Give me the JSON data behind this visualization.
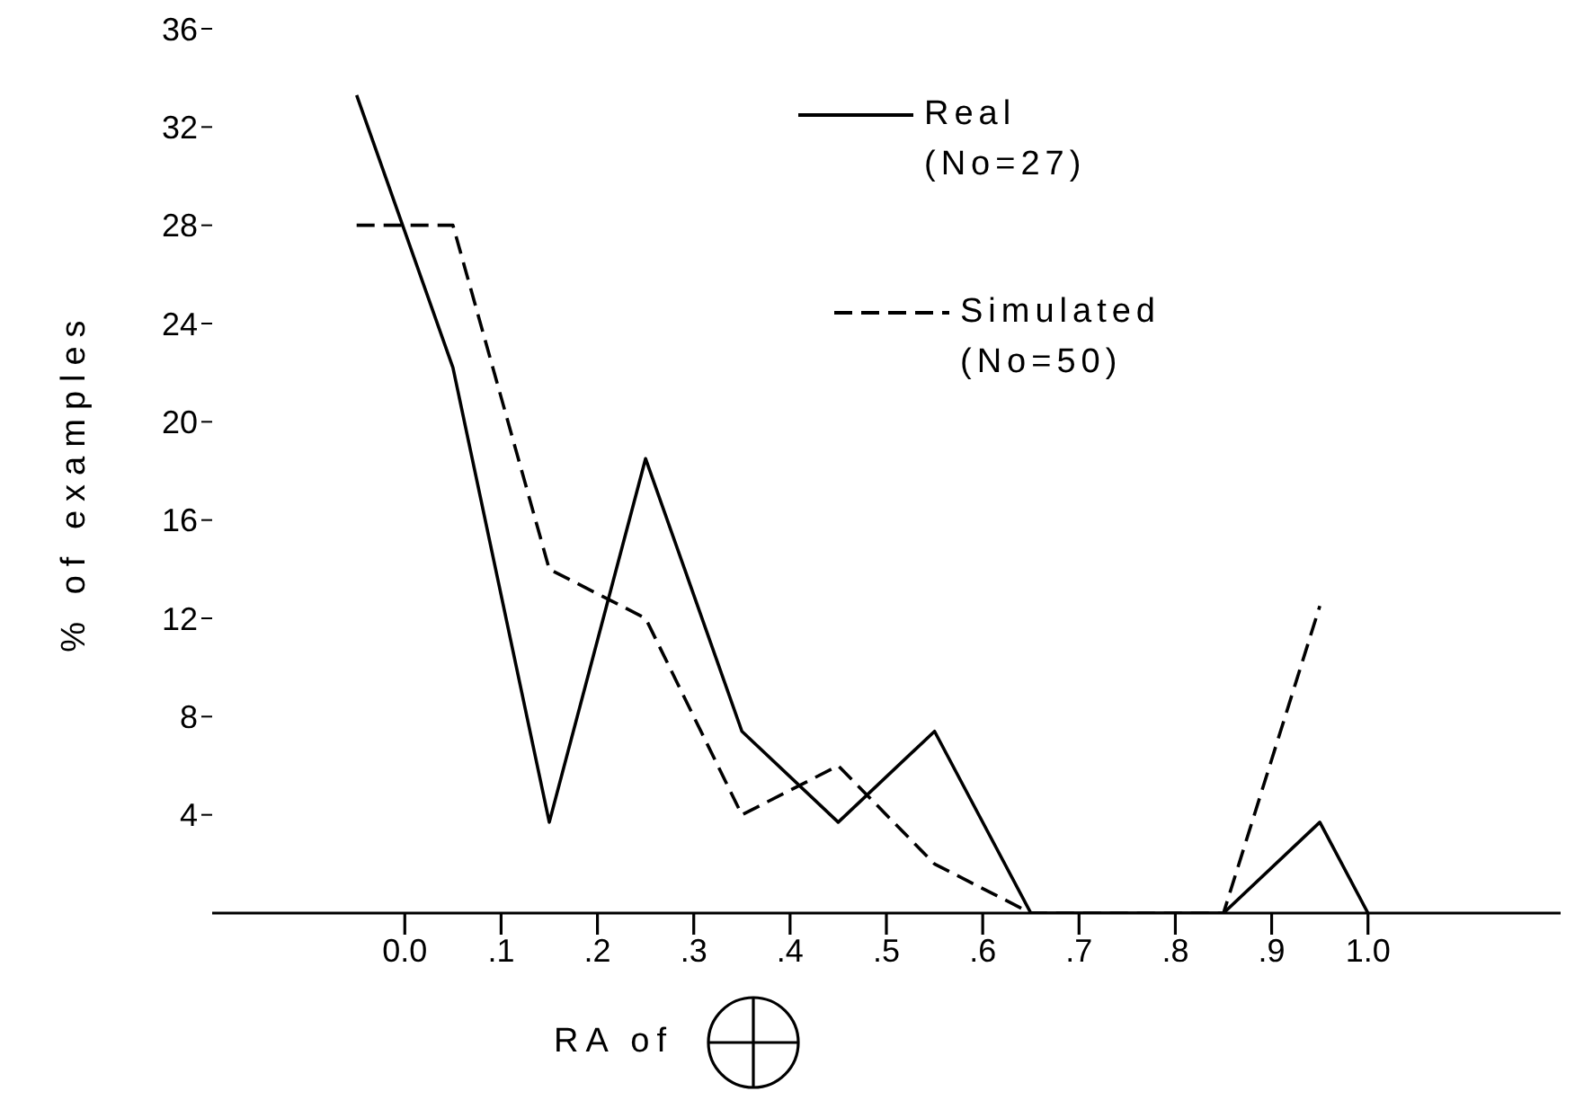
{
  "chart_data": {
    "type": "line",
    "xlabel": "RA of",
    "ylabel": "% of examples",
    "xlim": [
      -0.2,
      1.2
    ],
    "ylim": [
      0,
      36
    ],
    "xticks": [
      {
        "value": 0,
        "label": "0.0"
      },
      {
        "value": 0.1,
        "label": ".1"
      },
      {
        "value": 0.2,
        "label": ".2"
      },
      {
        "value": 0.3,
        "label": ".3"
      },
      {
        "value": 0.4,
        "label": ".4"
      },
      {
        "value": 0.5,
        "label": ".5"
      },
      {
        "value": 0.6,
        "label": ".6"
      },
      {
        "value": 0.7,
        "label": ".7"
      },
      {
        "value": 0.8,
        "label": ".8"
      },
      {
        "value": 0.9,
        "label": ".9"
      },
      {
        "value": 1,
        "label": "1.0"
      }
    ],
    "yticks": [
      {
        "value": 4,
        "label": "4"
      },
      {
        "value": 8,
        "label": "8"
      },
      {
        "value": 12,
        "label": "12"
      },
      {
        "value": 16,
        "label": "16"
      },
      {
        "value": 20,
        "label": "20"
      },
      {
        "value": 24,
        "label": "24"
      },
      {
        "value": 28,
        "label": "28"
      },
      {
        "value": 32,
        "label": "32"
      },
      {
        "value": 36,
        "label": "36"
      }
    ],
    "series": [
      {
        "name": "Real",
        "color": "#000000",
        "line_style": "solid",
        "x": [
          -0.05,
          0.05,
          0.15,
          0.25,
          0.35,
          0.45,
          0.55,
          0.65,
          0.85,
          0.95,
          1.0
        ],
        "values": [
          33.3,
          22.2,
          3.7,
          18.5,
          7.4,
          3.7,
          7.4,
          0,
          0,
          3.7,
          0
        ]
      },
      {
        "name": "Simulated",
        "color": "#000000",
        "line_style": "dashed",
        "x": [
          -0.05,
          0.05,
          0.15,
          0.25,
          0.35,
          0.45,
          0.55,
          0.65,
          0.85,
          0.95
        ],
        "values": [
          28,
          28,
          14,
          12,
          4,
          6,
          2,
          0,
          0,
          12.5
        ]
      }
    ],
    "annotations": [
      "(No=27)",
      "(No=50)"
    ],
    "legend": "top",
    "marker": "none"
  }
}
